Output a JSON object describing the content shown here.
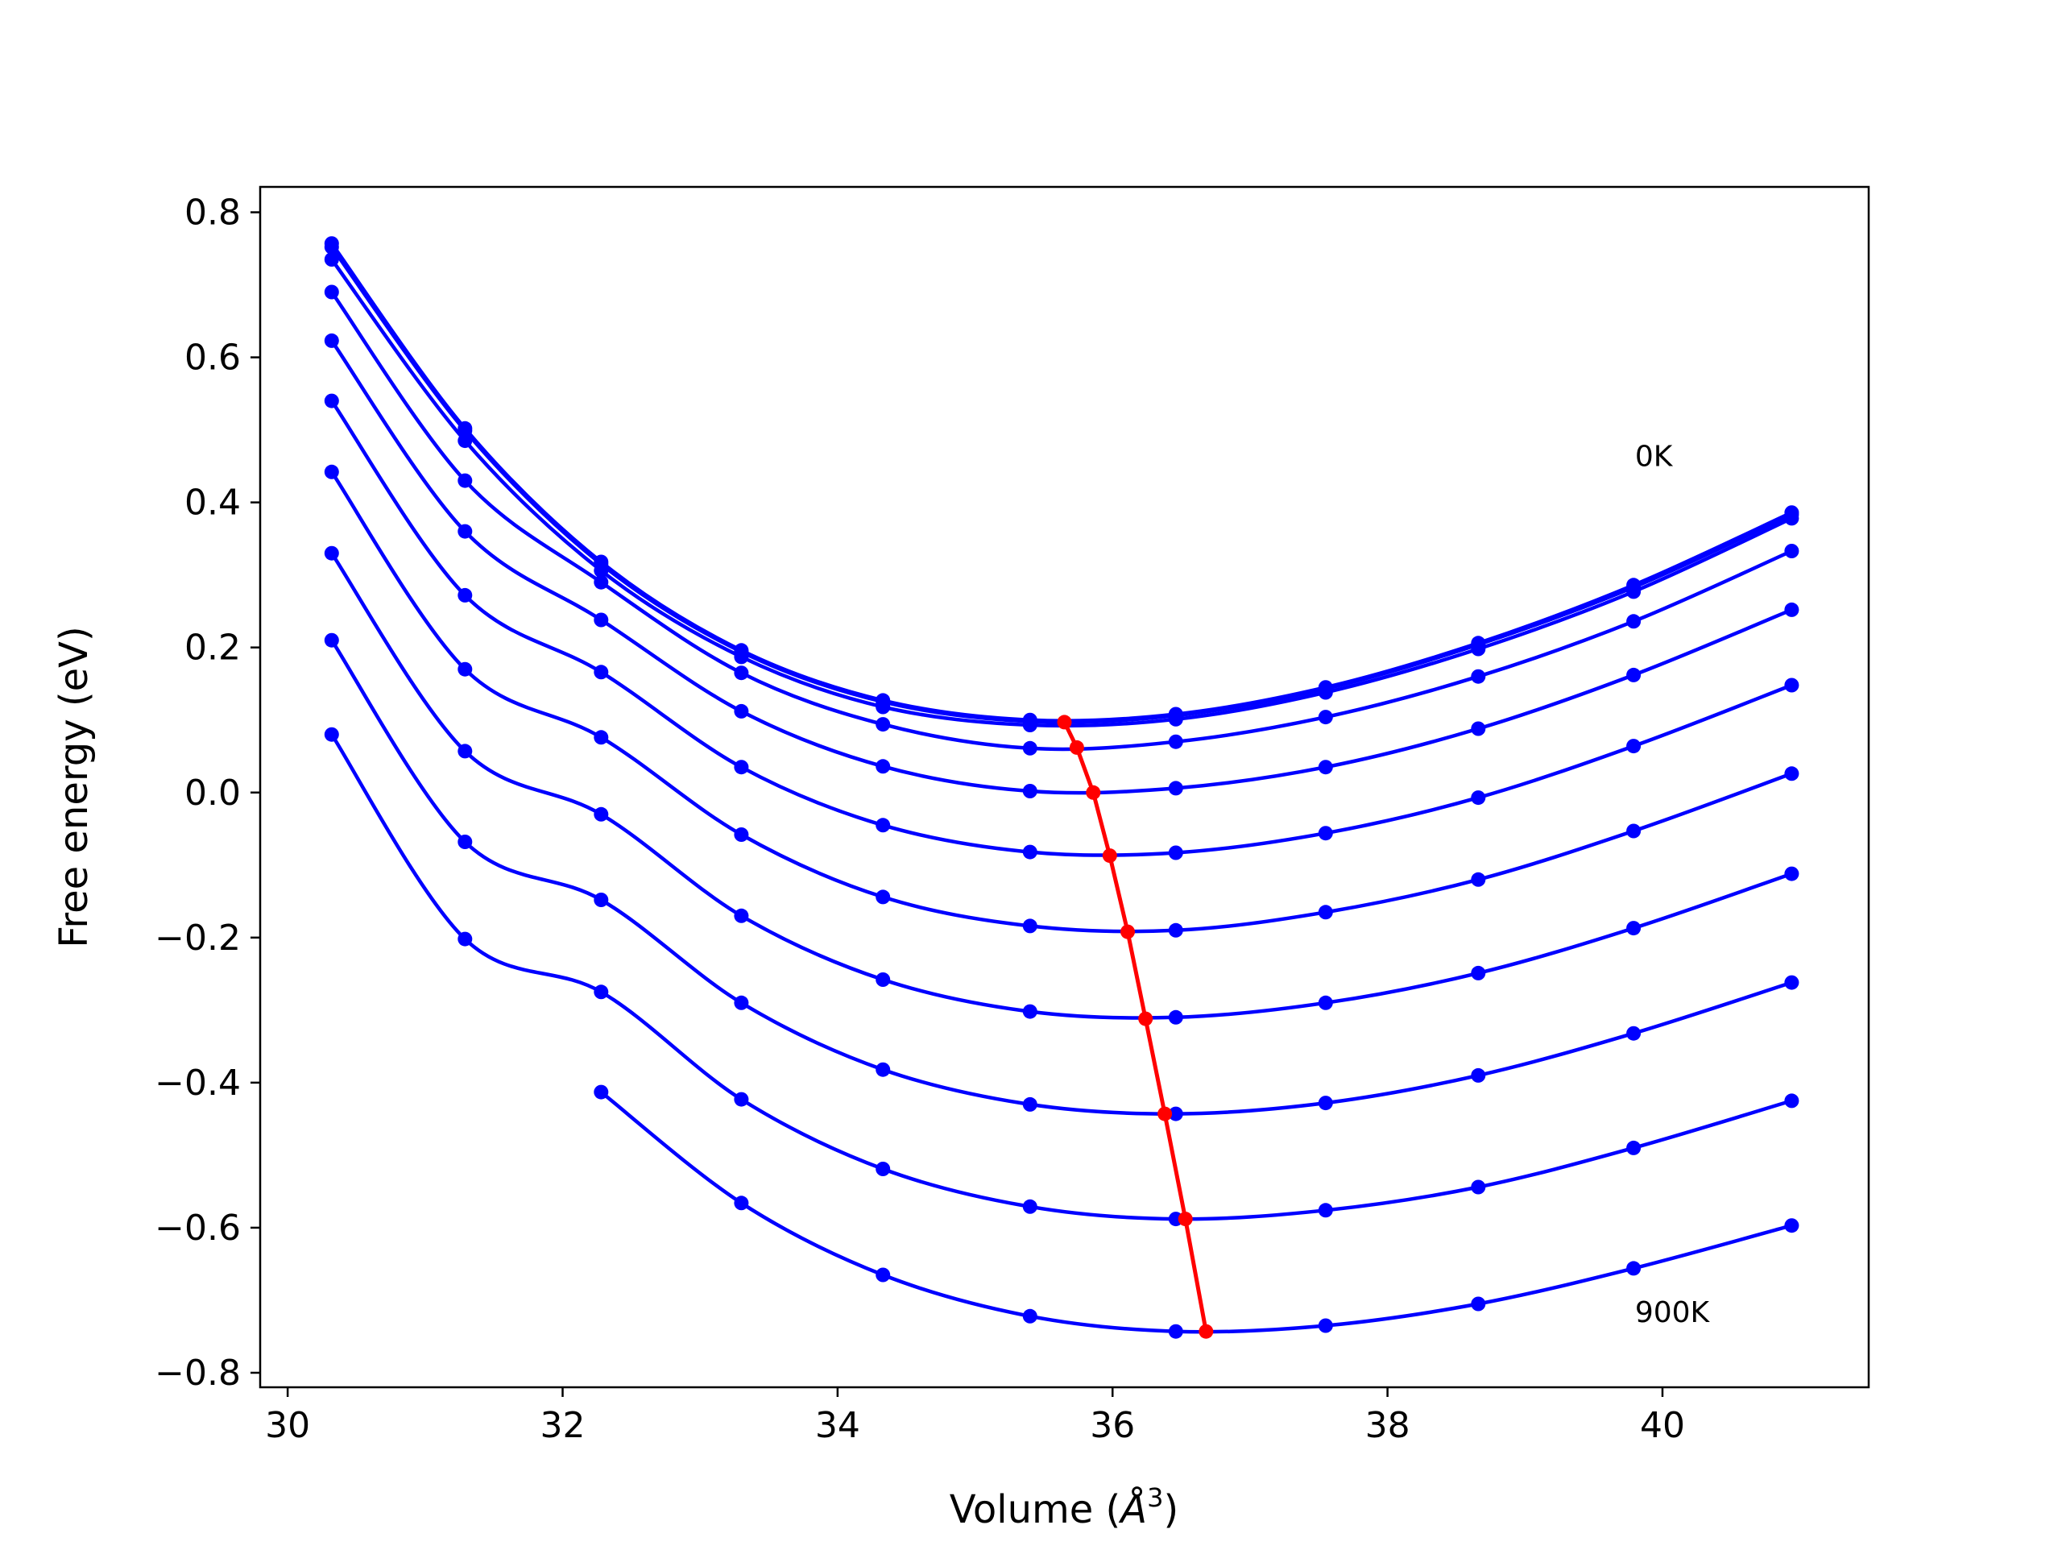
{
  "chart_data": {
    "type": "line",
    "title": "",
    "xlabel": "Volume (",
    "xlabel_unit": "Å",
    "xlabel_sup": "3",
    "xlabel_close": ")",
    "ylabel": "Free energy (eV)",
    "xlim": [
      29.8,
      41.5
    ],
    "ylim": [
      -0.82,
      0.835
    ],
    "xticks": [
      30,
      32,
      34,
      36,
      38,
      40
    ],
    "xtick_labels": [
      "30",
      "32",
      "34",
      "36",
      "38",
      "40"
    ],
    "yticks": [
      0.8,
      0.6,
      0.4,
      0.2,
      0.0,
      -0.2,
      -0.4,
      -0.6,
      -0.8
    ],
    "ytick_labels": [
      "0.8",
      "0.6",
      "0.4",
      "0.2",
      "0.0",
      "−0.2",
      "−0.4",
      "−0.6",
      "−0.8"
    ],
    "grid": false,
    "colors": {
      "curves": "#0000ff",
      "minimum_path": "#ff0000",
      "axes": "#000000"
    },
    "annotations": [
      {
        "text": "0K",
        "x": 39.8,
        "y": 0.45
      },
      {
        "text": "900K",
        "x": 39.8,
        "y": -0.73
      }
    ],
    "x": [
      30.32,
      31.29,
      32.28,
      33.3,
      34.33,
      35.4,
      36.46,
      37.55,
      38.66,
      39.79,
      40.94
    ],
    "series": [
      {
        "values": [
          0.757,
          0.502,
          0.318,
          0.196,
          0.127,
          0.1,
          0.108,
          0.145,
          0.206,
          0.286,
          0.386
        ]
      },
      {
        "values": [
          0.752,
          0.499,
          0.315,
          0.194,
          0.125,
          0.098,
          0.106,
          0.143,
          0.204,
          0.283,
          0.383
        ]
      },
      {
        "values": [
          0.735,
          0.485,
          0.306,
          0.187,
          0.118,
          0.093,
          0.101,
          0.138,
          0.198,
          0.277,
          0.378
        ]
      },
      {
        "values": [
          0.69,
          0.43,
          0.29,
          0.165,
          0.094,
          0.061,
          0.07,
          0.104,
          0.16,
          0.236,
          0.333
        ]
      },
      {
        "values": [
          0.623,
          0.36,
          0.238,
          0.112,
          0.036,
          0.002,
          0.006,
          0.035,
          0.088,
          0.162,
          0.252
        ]
      },
      {
        "values": [
          0.54,
          0.272,
          0.166,
          0.035,
          -0.045,
          -0.082,
          -0.083,
          -0.056,
          -0.007,
          0.064,
          0.148
        ]
      },
      {
        "values": [
          0.442,
          0.17,
          0.076,
          -0.058,
          -0.144,
          -0.184,
          -0.19,
          -0.165,
          -0.12,
          -0.053,
          0.026
        ]
      },
      {
        "values": [
          0.33,
          0.057,
          -0.03,
          -0.17,
          -0.258,
          -0.302,
          -0.31,
          -0.29,
          -0.249,
          -0.187,
          -0.112
        ]
      },
      {
        "values": [
          0.21,
          -0.068,
          -0.148,
          -0.29,
          -0.382,
          -0.43,
          -0.443,
          -0.428,
          -0.39,
          -0.332,
          -0.262
        ]
      },
      {
        "values": [
          0.08,
          -0.202,
          -0.275,
          -0.423,
          -0.519,
          -0.571,
          -0.588,
          -0.576,
          -0.544,
          -0.49,
          -0.425
        ]
      },
      {
        "values": [
          null,
          null,
          -0.413,
          -0.566,
          -0.665,
          -0.722,
          -0.743,
          -0.735,
          -0.705,
          -0.656,
          -0.597
        ]
      }
    ],
    "minimum_path": {
      "x": [
        35.65,
        35.74,
        35.86,
        35.98,
        36.11,
        36.24,
        36.38,
        36.53,
        36.68
      ],
      "y": [
        0.097,
        0.062,
        0.0,
        -0.087,
        -0.192,
        -0.312,
        -0.443,
        -0.588,
        -0.743
      ]
    }
  }
}
